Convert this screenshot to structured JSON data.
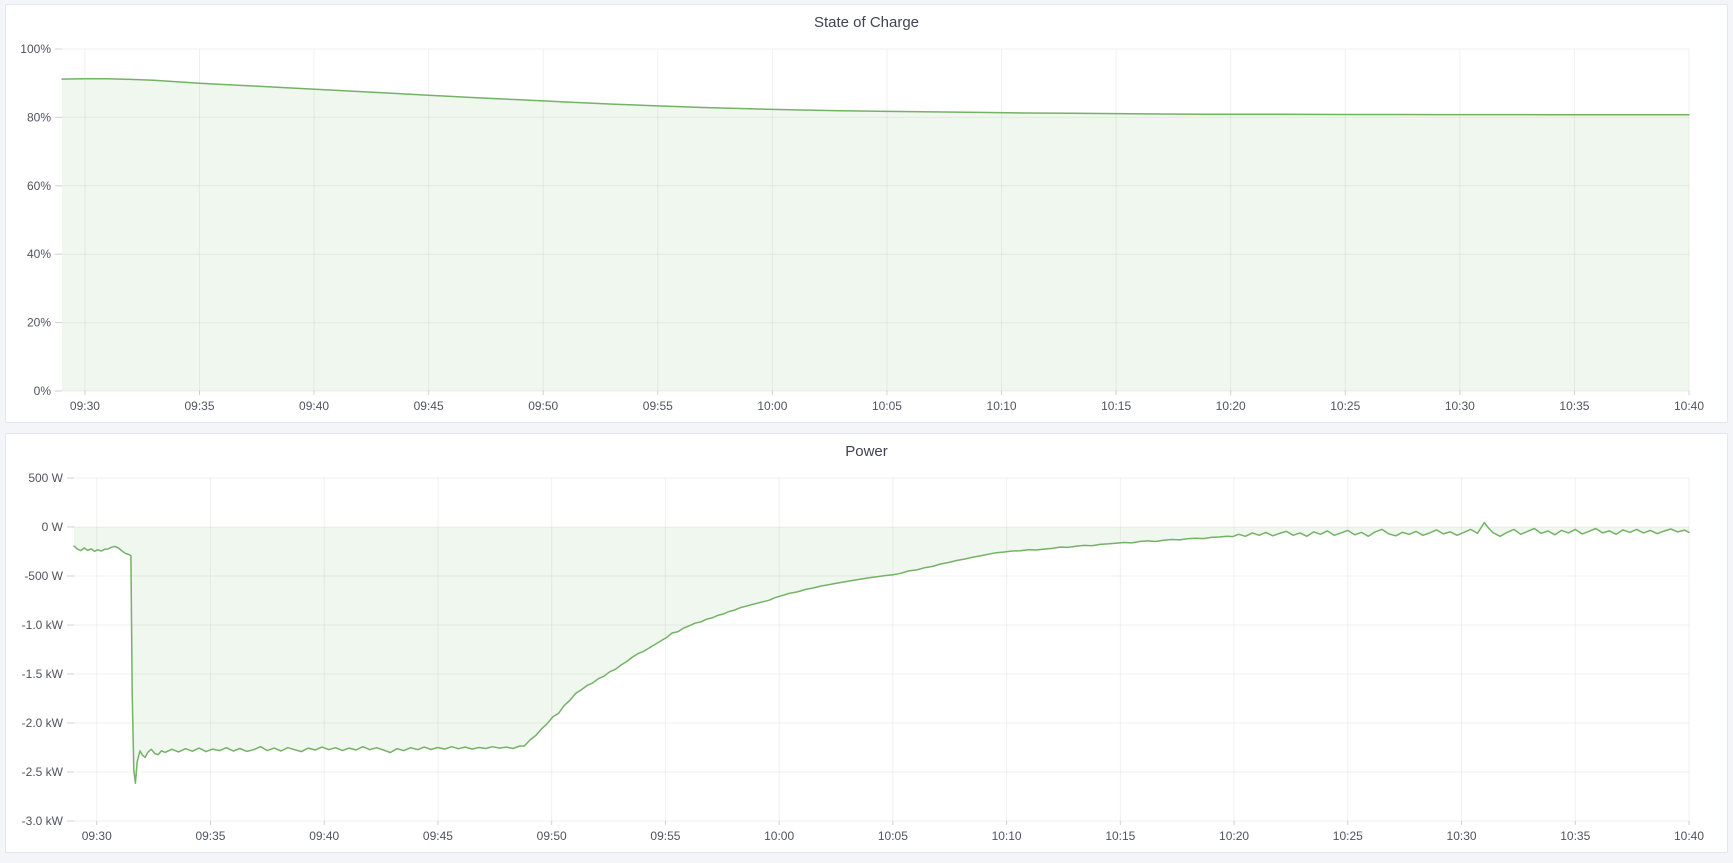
{
  "theme": {
    "page_background": "#f4f5f9",
    "panel_background": "#ffffff",
    "panel_border": "#e2e6ee",
    "line_color": "#74b266",
    "fill_color": "rgba(115,178,102,0.11)",
    "grid_color": "rgba(45,51,62,0.07)",
    "tick_color": "rgba(45,51,62,0.22)",
    "axis_text_color": "#50545e",
    "title_color": "#3f4450"
  },
  "chart_data": [
    {
      "type": "area",
      "title": "State of Charge",
      "unit": "percent",
      "legend": "none",
      "grid": "on",
      "x_range_minutes_from_0930": [
        -1,
        70
      ],
      "x_ticks": [
        {
          "t": 0,
          "label": "09:30"
        },
        {
          "t": 5,
          "label": "09:35"
        },
        {
          "t": 10,
          "label": "09:40"
        },
        {
          "t": 15,
          "label": "09:45"
        },
        {
          "t": 20,
          "label": "09:50"
        },
        {
          "t": 25,
          "label": "09:55"
        },
        {
          "t": 30,
          "label": "10:00"
        },
        {
          "t": 35,
          "label": "10:05"
        },
        {
          "t": 40,
          "label": "10:10"
        },
        {
          "t": 45,
          "label": "10:15"
        },
        {
          "t": 50,
          "label": "10:20"
        },
        {
          "t": 55,
          "label": "10:25"
        },
        {
          "t": 60,
          "label": "10:30"
        },
        {
          "t": 65,
          "label": "10:35"
        },
        {
          "t": 70,
          "label": "10:40"
        }
      ],
      "y_range": [
        0,
        100
      ],
      "y_ticks": [
        {
          "v": 0,
          "label": "0%"
        },
        {
          "v": 20,
          "label": "20%"
        },
        {
          "v": 40,
          "label": "40%"
        },
        {
          "v": 60,
          "label": "60%"
        },
        {
          "v": 80,
          "label": "80%"
        },
        {
          "v": 100,
          "label": "100%"
        }
      ],
      "fill_baseline": 0,
      "points": [
        [
          -1,
          91.2
        ],
        [
          0,
          91.28
        ],
        [
          1,
          91.3
        ],
        [
          2,
          91.1
        ],
        [
          3,
          90.85
        ],
        [
          5,
          90.0
        ],
        [
          7,
          89.3
        ],
        [
          9,
          88.6
        ],
        [
          11,
          87.9
        ],
        [
          13,
          87.2
        ],
        [
          15,
          86.5
        ],
        [
          17,
          85.8
        ],
        [
          19,
          85.15
        ],
        [
          21,
          84.5
        ],
        [
          23,
          83.9
        ],
        [
          25,
          83.35
        ],
        [
          27,
          82.9
        ],
        [
          29,
          82.5
        ],
        [
          31,
          82.2
        ],
        [
          33,
          81.95
        ],
        [
          35,
          81.75
        ],
        [
          37,
          81.6
        ],
        [
          39,
          81.45
        ],
        [
          41,
          81.3
        ],
        [
          43,
          81.2
        ],
        [
          45,
          81.1
        ],
        [
          47,
          81.0
        ],
        [
          49,
          80.95
        ],
        [
          52,
          80.9
        ],
        [
          55,
          80.85
        ],
        [
          59,
          80.82
        ],
        [
          64,
          80.8
        ],
        [
          70,
          80.8
        ]
      ]
    },
    {
      "type": "area",
      "title": "Power",
      "unit": "watt",
      "legend": "none",
      "grid": "on",
      "x_range_minutes_from_0930": [
        -1,
        70
      ],
      "x_ticks": [
        {
          "t": 0,
          "label": "09:30"
        },
        {
          "t": 5,
          "label": "09:35"
        },
        {
          "t": 10,
          "label": "09:40"
        },
        {
          "t": 15,
          "label": "09:45"
        },
        {
          "t": 20,
          "label": "09:50"
        },
        {
          "t": 25,
          "label": "09:55"
        },
        {
          "t": 30,
          "label": "10:00"
        },
        {
          "t": 35,
          "label": "10:05"
        },
        {
          "t": 40,
          "label": "10:10"
        },
        {
          "t": 45,
          "label": "10:15"
        },
        {
          "t": 50,
          "label": "10:20"
        },
        {
          "t": 55,
          "label": "10:25"
        },
        {
          "t": 60,
          "label": "10:30"
        },
        {
          "t": 65,
          "label": "10:35"
        },
        {
          "t": 70,
          "label": "10:40"
        }
      ],
      "y_range": [
        -3000,
        500
      ],
      "y_ticks": [
        {
          "v": 500,
          "label": "500 W"
        },
        {
          "v": 0,
          "label": "0 W"
        },
        {
          "v": -500,
          "label": "-500 W"
        },
        {
          "v": -1000,
          "label": "-1.0 kW"
        },
        {
          "v": -1500,
          "label": "-1.5 kW"
        },
        {
          "v": -2000,
          "label": "-2.0 kW"
        },
        {
          "v": -2500,
          "label": "-2.5 kW"
        },
        {
          "v": -3000,
          "label": "-3.0 kW"
        }
      ],
      "fill_baseline": 0,
      "points": [
        [
          -1,
          -195
        ],
        [
          -0.85,
          -226
        ],
        [
          -0.7,
          -241
        ],
        [
          -0.55,
          -214
        ],
        [
          -0.4,
          -239
        ],
        [
          -0.25,
          -222
        ],
        [
          -0.1,
          -248
        ],
        [
          0.05,
          -233
        ],
        [
          0.2,
          -246
        ],
        [
          0.35,
          -228
        ],
        [
          0.5,
          -224
        ],
        [
          0.65,
          -206
        ],
        [
          0.8,
          -199
        ],
        [
          0.95,
          -214
        ],
        [
          1.1,
          -243
        ],
        [
          1.25,
          -268
        ],
        [
          1.4,
          -281
        ],
        [
          1.5,
          -292
        ],
        [
          1.56,
          -1700
        ],
        [
          1.63,
          -2480
        ],
        [
          1.7,
          -2615
        ],
        [
          1.78,
          -2395
        ],
        [
          1.9,
          -2285
        ],
        [
          2.0,
          -2325
        ],
        [
          2.12,
          -2352
        ],
        [
          2.25,
          -2298
        ],
        [
          2.4,
          -2268
        ],
        [
          2.55,
          -2312
        ],
        [
          2.7,
          -2322
        ],
        [
          2.85,
          -2284
        ],
        [
          3.0,
          -2300
        ],
        [
          3.3,
          -2268
        ],
        [
          3.6,
          -2295
        ],
        [
          3.9,
          -2262
        ],
        [
          4.2,
          -2288
        ],
        [
          4.5,
          -2256
        ],
        [
          4.8,
          -2292
        ],
        [
          5.1,
          -2266
        ],
        [
          5.4,
          -2282
        ],
        [
          5.7,
          -2252
        ],
        [
          6.0,
          -2286
        ],
        [
          6.3,
          -2260
        ],
        [
          6.6,
          -2290
        ],
        [
          6.9,
          -2272
        ],
        [
          7.2,
          -2242
        ],
        [
          7.5,
          -2282
        ],
        [
          7.8,
          -2256
        ],
        [
          8.1,
          -2286
        ],
        [
          8.4,
          -2252
        ],
        [
          8.7,
          -2272
        ],
        [
          9.0,
          -2292
        ],
        [
          9.3,
          -2256
        ],
        [
          9.6,
          -2276
        ],
        [
          9.9,
          -2246
        ],
        [
          10.2,
          -2272
        ],
        [
          10.5,
          -2252
        ],
        [
          10.8,
          -2282
        ],
        [
          11.1,
          -2256
        ],
        [
          11.4,
          -2276
        ],
        [
          11.7,
          -2242
        ],
        [
          12.0,
          -2272
        ],
        [
          12.3,
          -2252
        ],
        [
          12.6,
          -2276
        ],
        [
          12.9,
          -2302
        ],
        [
          13.2,
          -2262
        ],
        [
          13.5,
          -2282
        ],
        [
          13.8,
          -2252
        ],
        [
          14.1,
          -2272
        ],
        [
          14.4,
          -2246
        ],
        [
          14.7,
          -2270
        ],
        [
          15.0,
          -2250
        ],
        [
          15.3,
          -2266
        ],
        [
          15.6,
          -2242
        ],
        [
          15.9,
          -2262
        ],
        [
          16.2,
          -2246
        ],
        [
          16.5,
          -2266
        ],
        [
          16.8,
          -2250
        ],
        [
          17.1,
          -2260
        ],
        [
          17.4,
          -2242
        ],
        [
          17.7,
          -2256
        ],
        [
          18.0,
          -2246
        ],
        [
          18.3,
          -2260
        ],
        [
          18.6,
          -2235
        ],
        [
          18.8,
          -2235
        ],
        [
          19.05,
          -2172
        ],
        [
          19.3,
          -2128
        ],
        [
          19.55,
          -2062
        ],
        [
          19.8,
          -2008
        ],
        [
          20.05,
          -1938
        ],
        [
          20.3,
          -1902
        ],
        [
          20.55,
          -1822
        ],
        [
          20.8,
          -1768
        ],
        [
          21.05,
          -1698
        ],
        [
          21.3,
          -1662
        ],
        [
          21.55,
          -1618
        ],
        [
          21.8,
          -1592
        ],
        [
          22.05,
          -1548
        ],
        [
          22.3,
          -1522
        ],
        [
          22.55,
          -1478
        ],
        [
          22.8,
          -1452
        ],
        [
          23.05,
          -1408
        ],
        [
          23.3,
          -1372
        ],
        [
          23.55,
          -1328
        ],
        [
          23.8,
          -1292
        ],
        [
          24.05,
          -1268
        ],
        [
          24.3,
          -1232
        ],
        [
          24.55,
          -1198
        ],
        [
          24.8,
          -1162
        ],
        [
          25.05,
          -1128
        ],
        [
          25.3,
          -1082
        ],
        [
          25.55,
          -1068
        ],
        [
          25.8,
          -1032
        ],
        [
          26.05,
          -1008
        ],
        [
          26.3,
          -982
        ],
        [
          26.55,
          -968
        ],
        [
          26.8,
          -942
        ],
        [
          27.05,
          -928
        ],
        [
          27.3,
          -902
        ],
        [
          27.55,
          -888
        ],
        [
          27.8,
          -862
        ],
        [
          28.05,
          -848
        ],
        [
          28.3,
          -822
        ],
        [
          28.55,
          -808
        ],
        [
          28.8,
          -792
        ],
        [
          29.05,
          -778
        ],
        [
          29.3,
          -762
        ],
        [
          29.55,
          -748
        ],
        [
          29.8,
          -722
        ],
        [
          30.1,
          -702
        ],
        [
          30.45,
          -678
        ],
        [
          30.8,
          -662
        ],
        [
          31.15,
          -638
        ],
        [
          31.5,
          -622
        ],
        [
          31.85,
          -602
        ],
        [
          32.2,
          -588
        ],
        [
          32.55,
          -572
        ],
        [
          32.9,
          -558
        ],
        [
          33.25,
          -545
        ],
        [
          33.6,
          -532
        ],
        [
          33.95,
          -518
        ],
        [
          34.3,
          -508
        ],
        [
          34.65,
          -496
        ],
        [
          35.0,
          -488
        ],
        [
          35.35,
          -472
        ],
        [
          35.7,
          -448
        ],
        [
          36.05,
          -438
        ],
        [
          36.4,
          -415
        ],
        [
          36.75,
          -402
        ],
        [
          37.1,
          -378
        ],
        [
          37.45,
          -362
        ],
        [
          37.8,
          -342
        ],
        [
          38.15,
          -328
        ],
        [
          38.5,
          -308
        ],
        [
          38.85,
          -295
        ],
        [
          39.2,
          -278
        ],
        [
          39.55,
          -262
        ],
        [
          39.9,
          -255
        ],
        [
          40.25,
          -245
        ],
        [
          40.6,
          -242
        ],
        [
          40.95,
          -232
        ],
        [
          41.3,
          -235
        ],
        [
          41.65,
          -225
        ],
        [
          42.0,
          -218
        ],
        [
          42.35,
          -205
        ],
        [
          42.7,
          -208
        ],
        [
          43.05,
          -196
        ],
        [
          43.4,
          -188
        ],
        [
          43.75,
          -192
        ],
        [
          44.1,
          -178
        ],
        [
          44.45,
          -172
        ],
        [
          44.8,
          -165
        ],
        [
          45.15,
          -158
        ],
        [
          45.5,
          -162
        ],
        [
          45.85,
          -148
        ],
        [
          46.2,
          -142
        ],
        [
          46.55,
          -148
        ],
        [
          46.9,
          -135
        ],
        [
          47.25,
          -128
        ],
        [
          47.6,
          -132
        ],
        [
          47.95,
          -120
        ],
        [
          48.3,
          -114
        ],
        [
          48.65,
          -118
        ],
        [
          49.0,
          -106
        ],
        [
          49.35,
          -102
        ],
        [
          49.7,
          -95
        ],
        [
          49.95,
          -98
        ],
        [
          50.2,
          -75
        ],
        [
          50.5,
          -95
        ],
        [
          50.8,
          -60
        ],
        [
          51.1,
          -85
        ],
        [
          51.4,
          -55
        ],
        [
          51.7,
          -90
        ],
        [
          52.0,
          -65
        ],
        [
          52.3,
          -45
        ],
        [
          52.6,
          -85
        ],
        [
          52.9,
          -60
        ],
        [
          53.2,
          -95
        ],
        [
          53.5,
          -50
        ],
        [
          53.8,
          -75
        ],
        [
          54.1,
          -40
        ],
        [
          54.4,
          -85
        ],
        [
          54.7,
          -60
        ],
        [
          55.0,
          -35
        ],
        [
          55.3,
          -80
        ],
        [
          55.6,
          -55
        ],
        [
          55.9,
          -95
        ],
        [
          56.2,
          -50
        ],
        [
          56.5,
          -25
        ],
        [
          56.8,
          -70
        ],
        [
          57.1,
          -90
        ],
        [
          57.4,
          -55
        ],
        [
          57.7,
          -75
        ],
        [
          58.0,
          -45
        ],
        [
          58.3,
          -85
        ],
        [
          58.6,
          -60
        ],
        [
          58.9,
          -30
        ],
        [
          59.2,
          -70
        ],
        [
          59.5,
          -50
        ],
        [
          59.8,
          -85
        ],
        [
          60.1,
          -55
        ],
        [
          60.4,
          -25
        ],
        [
          60.7,
          -65
        ],
        [
          61.0,
          45
        ],
        [
          61.2,
          -15
        ],
        [
          61.4,
          -60
        ],
        [
          61.7,
          -95
        ],
        [
          62.0,
          -55
        ],
        [
          62.3,
          -25
        ],
        [
          62.6,
          -75
        ],
        [
          62.9,
          -45
        ],
        [
          63.2,
          -15
        ],
        [
          63.5,
          -65
        ],
        [
          63.8,
          -40
        ],
        [
          64.1,
          -80
        ],
        [
          64.4,
          -35
        ],
        [
          64.7,
          -60
        ],
        [
          65.0,
          -25
        ],
        [
          65.3,
          -70
        ],
        [
          65.6,
          -45
        ],
        [
          65.9,
          -15
        ],
        [
          66.2,
          -60
        ],
        [
          66.5,
          -40
        ],
        [
          66.8,
          -75
        ],
        [
          67.1,
          -30
        ],
        [
          67.4,
          -55
        ],
        [
          67.7,
          -25
        ],
        [
          68.0,
          -60
        ],
        [
          68.3,
          -35
        ],
        [
          68.6,
          -68
        ],
        [
          68.9,
          -42
        ],
        [
          69.2,
          -20
        ],
        [
          69.5,
          -50
        ],
        [
          69.8,
          -32
        ],
        [
          70.0,
          -55
        ]
      ]
    }
  ]
}
